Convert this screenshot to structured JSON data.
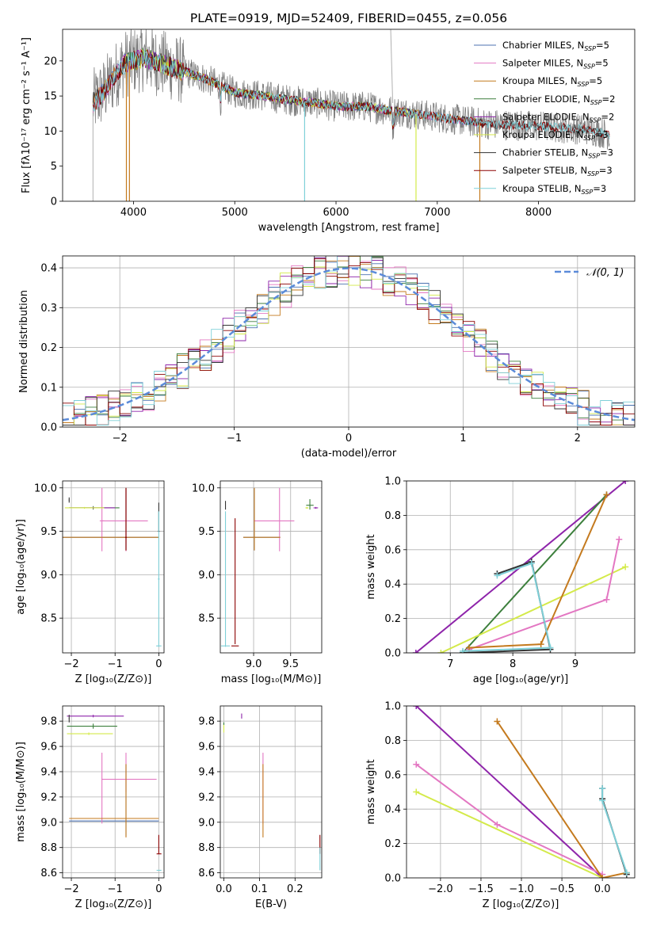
{
  "colors": {
    "Chabrier MILES": "#4c72b0",
    "Salpeter MILES": "#e377c2",
    "Kroupa MILES": "#c47a1e",
    "Chabrier ELODIE": "#3c7f3c",
    "Salpeter ELODIE": "#8e24aa",
    "Kroupa ELODIE": "#d4ea4a",
    "Chabrier STELIB": "#333333",
    "Salpeter STELIB": "#8b0000",
    "Kroupa STELIB": "#7fd0d8",
    "gray_spectrum": "#808080",
    "normal_curve": "#5b8bd9",
    "age_weight_line": "#7fd0d8",
    "z_weight_line": "#c47a1e"
  },
  "chart_data": [
    {
      "id": "spectrum",
      "type": "line",
      "title": "PLATE=0919, MJD=52409, FIBERID=0455, z=0.056",
      "xlabel": "wavelength [Angstrom, rest frame]",
      "ylabel": "Flux [fλ10⁻¹⁷ erg cm⁻² s⁻¹ A⁻¹]",
      "xlim": [
        3300,
        8950
      ],
      "ylim": [
        0,
        24.5
      ],
      "xticks": [
        4000,
        5000,
        6000,
        7000,
        8000
      ],
      "yticks": [
        0,
        5,
        10,
        15,
        20
      ],
      "grid": false,
      "legend_position": "top-right",
      "series": [
        {
          "name": "Chabrier MILES, N_SSP=5",
          "label_main": "Chabrier MILES, N",
          "label_sub": "SSP",
          "label_tail": "=5"
        },
        {
          "name": "Salpeter MILES, N_SSP=5",
          "label_main": "Salpeter MILES, N",
          "label_sub": "SSP",
          "label_tail": "=5"
        },
        {
          "name": "Kroupa MILES, N_SSP=5",
          "label_main": "Kroupa MILES, N",
          "label_sub": "SSP",
          "label_tail": "=5"
        },
        {
          "name": "Chabrier ELODIE, N_SSP=2",
          "label_main": "Chabrier ELODIE, N",
          "label_sub": "SSP",
          "label_tail": "=2"
        },
        {
          "name": "Salpeter ELODIE, N_SSP=2",
          "label_main": "Salpeter ELODIE, N",
          "label_sub": "SSP",
          "label_tail": "=2"
        },
        {
          "name": "Kroupa ELODIE, N_SSP=3",
          "label_main": "Kroupa ELODIE, N",
          "label_sub": "SSP",
          "label_tail": "=3"
        },
        {
          "name": "Chabrier STELIB, N_SSP=3",
          "label_main": "Chabrier STELIB, N",
          "label_sub": "SSP",
          "label_tail": "=3"
        },
        {
          "name": "Salpeter STELIB, N_SSP=3",
          "label_main": "Salpeter STELIB, N",
          "label_sub": "SSP",
          "label_tail": "=3"
        },
        {
          "name": "Kroupa STELIB, N_SSP=3",
          "label_main": "Kroupa STELIB, N",
          "label_sub": "SSP",
          "label_tail": "=3"
        }
      ],
      "continuum": [
        [
          3600,
          14
        ],
        [
          3700,
          15.5
        ],
        [
          3800,
          17.5
        ],
        [
          3900,
          19.5
        ],
        [
          4000,
          20
        ],
        [
          4100,
          20.5
        ],
        [
          4200,
          20
        ],
        [
          4300,
          19.5
        ],
        [
          4500,
          18.5
        ],
        [
          4700,
          17.5
        ],
        [
          5000,
          15.5
        ],
        [
          5300,
          15
        ],
        [
          5500,
          14.5
        ],
        [
          5800,
          14
        ],
        [
          6000,
          13.5
        ],
        [
          6300,
          13.5
        ],
        [
          6500,
          13
        ],
        [
          7000,
          12
        ],
        [
          7500,
          11
        ],
        [
          8000,
          10.7
        ],
        [
          8500,
          10.2
        ],
        [
          8700,
          9.5
        ]
      ]
    },
    {
      "id": "residuals",
      "type": "line",
      "xlabel": "(data-model)/error",
      "ylabel": "Normed distribution",
      "xlim": [
        -2.5,
        2.5
      ],
      "ylim": [
        0,
        0.43
      ],
      "xticks": [
        -2,
        -1,
        0,
        1,
        2
      ],
      "yticks": [
        0.0,
        0.1,
        0.2,
        0.3,
        0.4
      ],
      "grid": true,
      "legend_position": "top-right",
      "legend_label": "𝒩(0, 1)"
    },
    {
      "id": "age_vs_Z",
      "type": "scatter",
      "xlabel": "Z [log₁₀(Z/Z⊙)]",
      "ylabel": "age  [log₁₀(age/yr)]",
      "xlim": [
        -2.2,
        0.12
      ],
      "ylim": [
        8.1,
        10.08
      ],
      "xticks": [
        -2,
        -1,
        0
      ],
      "yticks": [
        8.5,
        9.0,
        9.5,
        10.0
      ],
      "grid": true,
      "points": [
        {
          "series": "Chabrier MILES",
          "x": -0.75,
          "y": 9.43,
          "xerr": [
            1.5,
            0.75
          ],
          "yerr": [
            0.15,
            0.57
          ]
        },
        {
          "series": "Salpeter MILES",
          "x": -0.75,
          "y": 9.62,
          "xerr": [
            0.55,
            0.5
          ],
          "yerr": [
            0.35,
            0.38
          ]
        },
        {
          "series": "Salpeter MILES",
          "x": -1.3,
          "y": 9.62,
          "xerr": [
            0.05,
            0.05
          ],
          "yerr": [
            0.35,
            0.38
          ]
        },
        {
          "series": "Kroupa MILES",
          "x": -0.75,
          "y": 9.43,
          "xerr": [
            1.5,
            0.75
          ],
          "yerr": [
            0.15,
            0.57
          ]
        },
        {
          "series": "Chabrier ELODIE",
          "x": -1.5,
          "y": 9.77,
          "xerr": [
            0.55,
            0.6
          ],
          "yerr": [
            0.02,
            0.02
          ]
        },
        {
          "series": "Salpeter ELODIE",
          "x": -1.5,
          "y": 9.77,
          "xerr": [
            0.55,
            0.5
          ],
          "yerr": [
            0.01,
            0.01
          ]
        },
        {
          "series": "Kroupa ELODIE",
          "x": -1.7,
          "y": 9.77,
          "xerr": [
            0.45,
            0.45
          ],
          "yerr": [
            0.01,
            0.01
          ]
        },
        {
          "series": "Chabrier STELIB",
          "x": 0.0,
          "y": 9.5,
          "xerr": [
            0.02,
            0.02
          ],
          "yerr": [
            0.0,
            0.33
          ]
        },
        {
          "series": "Chabrier STELIB",
          "x": -2.05,
          "y": 9.86,
          "xerr": [
            0.01,
            0.01
          ],
          "yerr": [
            0.03,
            0.03
          ]
        },
        {
          "series": "Salpeter STELIB",
          "x": -0.75,
          "y": 9.43,
          "xerr": [
            0.02,
            0.02
          ],
          "yerr": [
            0.15,
            0.57
          ]
        },
        {
          "series": "Kroupa STELIB",
          "x": 0.0,
          "y": 8.95,
          "xerr": [
            0.02,
            0.02
          ],
          "yerr": [
            0.78,
            0.78
          ]
        },
        {
          "series": "Kroupa STELIB",
          "x": 0.0,
          "y": 8.18,
          "xerr": [
            0.06,
            0.06
          ],
          "yerr": [
            0.0,
            0.0
          ]
        }
      ]
    },
    {
      "id": "age_vs_mass",
      "type": "scatter",
      "xlabel": "mass [log₁₀(M/M⊙)]",
      "xlim": [
        8.55,
        9.92
      ],
      "ylim": [
        8.1,
        10.08
      ],
      "xticks": [
        9.0,
        9.5
      ],
      "yticks": [
        8.5,
        9.0,
        9.5,
        10.0
      ],
      "grid": true,
      "points": [
        {
          "series": "Chabrier MILES",
          "x": 9.01,
          "y": 9.43,
          "xerr": [
            0.15,
            0.35
          ],
          "yerr": [
            0.15,
            0.57
          ]
        },
        {
          "series": "Salpeter MILES",
          "x": 9.35,
          "y": 9.62,
          "xerr": [
            0.35,
            0.2
          ],
          "yerr": [
            0.35,
            0.38
          ]
        },
        {
          "series": "Kroupa MILES",
          "x": 9.01,
          "y": 9.43,
          "xerr": [
            0.15,
            0.35
          ],
          "yerr": [
            0.15,
            0.57
          ]
        },
        {
          "series": "Chabrier ELODIE",
          "x": 9.76,
          "y": 9.8,
          "xerr": [
            0.05,
            0.05
          ],
          "yerr": [
            0.05,
            0.07
          ]
        },
        {
          "series": "Salpeter ELODIE",
          "x": 9.84,
          "y": 9.77,
          "xerr": [
            0.03,
            0.03
          ],
          "yerr": [
            0.01,
            0.01
          ]
        },
        {
          "series": "Kroupa ELODIE",
          "x": 9.72,
          "y": 9.77,
          "xerr": [
            0.02,
            0.02
          ],
          "yerr": [
            0.01,
            0.01
          ]
        },
        {
          "series": "Chabrier STELIB",
          "x": 8.62,
          "y": 9.75,
          "xerr": [
            0.0,
            0.0
          ],
          "yerr": [
            0.0,
            0.1
          ]
        },
        {
          "series": "Salpeter STELIB",
          "x": 8.75,
          "y": 8.7,
          "xerr": [
            0.0,
            0.0
          ],
          "yerr": [
            0.5,
            0.95
          ]
        },
        {
          "series": "Salpeter STELIB",
          "x": 8.75,
          "y": 8.18,
          "xerr": [
            0.05,
            0.05
          ],
          "yerr": [
            0.0,
            0.0
          ]
        },
        {
          "series": "Kroupa STELIB",
          "x": 8.62,
          "y": 8.95,
          "xerr": [
            0.0,
            0.0
          ],
          "yerr": [
            0.78,
            0.78
          ]
        },
        {
          "series": "Kroupa STELIB",
          "x": 8.62,
          "y": 8.18,
          "xerr": [
            0.06,
            0.06
          ],
          "yerr": [
            0.0,
            0.0
          ]
        }
      ]
    },
    {
      "id": "weight_vs_age",
      "type": "line",
      "xlabel": "age  [log₁₀(age/yr)]",
      "ylabel": "mass weight",
      "xlim": [
        6.3,
        9.95
      ],
      "ylim": [
        0,
        1.0
      ],
      "xticks": [
        7,
        8,
        9
      ],
      "yticks": [
        0.0,
        0.2,
        0.4,
        0.6,
        0.8,
        1.0
      ],
      "grid": true,
      "series": [
        {
          "name": "Salpeter ELODIE",
          "x": [
            6.45,
            9.8
          ],
          "y": [
            0.0,
            1.0
          ]
        },
        {
          "name": "Chabrier ELODIE",
          "x": [
            7.2,
            9.5
          ],
          "y": [
            0.0,
            0.92
          ]
        },
        {
          "name": "Kroupa ELODIE",
          "x": [
            6.85,
            9.8
          ],
          "y": [
            0.0,
            0.5
          ]
        },
        {
          "name": "Salpeter MILES",
          "x": [
            7.3,
            9.5,
            9.7
          ],
          "y": [
            0.02,
            0.31,
            0.66
          ]
        },
        {
          "name": "Kroupa MILES",
          "x": [
            7.3,
            8.45,
            9.5
          ],
          "y": [
            0.03,
            0.05,
            0.92
          ]
        },
        {
          "name": "Chabrier STELIB",
          "x": [
            7.75,
            8.3,
            8.6,
            7.2
          ],
          "y": [
            0.46,
            0.53,
            0.02,
            0.0
          ]
        },
        {
          "name": "Kroupa STELIB",
          "x": [
            7.75,
            8.3,
            8.6,
            7.2
          ],
          "y": [
            0.45,
            0.52,
            0.03,
            0.01
          ]
        }
      ]
    },
    {
      "id": "mass_vs_Z",
      "type": "scatter",
      "xlabel": "Z [log₁₀(Z/Z⊙)]",
      "ylabel": "mass [log₁₀(M/M⊙)]",
      "xlim": [
        -2.2,
        0.12
      ],
      "ylim": [
        8.56,
        9.92
      ],
      "xticks": [
        -2,
        -1,
        0
      ],
      "yticks": [
        8.6,
        8.8,
        9.0,
        9.2,
        9.4,
        9.6,
        9.8
      ],
      "grid": true,
      "points": [
        {
          "series": "Chabrier MILES",
          "x": -0.75,
          "y": 9.01,
          "xerr": [
            1.3,
            0.75
          ],
          "yerr": [
            0.12,
            0.45
          ]
        },
        {
          "series": "Salpeter MILES",
          "x": -0.75,
          "y": 9.34,
          "xerr": [
            0.55,
            0.7
          ],
          "yerr": [
            0.1,
            0.21
          ]
        },
        {
          "series": "Salpeter MILES",
          "x": -1.3,
          "y": 9.34,
          "xerr": [
            0.01,
            0.01
          ],
          "yerr": [
            0.35,
            0.21
          ]
        },
        {
          "series": "Kroupa MILES",
          "x": -0.75,
          "y": 9.03,
          "xerr": [
            1.3,
            0.75
          ],
          "yerr": [
            0.15,
            0.43
          ]
        },
        {
          "series": "Chabrier ELODIE",
          "x": -1.5,
          "y": 9.76,
          "xerr": [
            0.6,
            0.55
          ],
          "yerr": [
            0.02,
            0.02
          ]
        },
        {
          "series": "Salpeter ELODIE",
          "x": -1.5,
          "y": 9.84,
          "xerr": [
            0.6,
            0.7
          ],
          "yerr": [
            0.01,
            0.01
          ]
        },
        {
          "series": "Kroupa ELODIE",
          "x": -1.6,
          "y": 9.7,
          "xerr": [
            0.5,
            0.55
          ],
          "yerr": [
            0.01,
            0.01
          ]
        },
        {
          "series": "Chabrier STELIB",
          "x": -2.05,
          "y": 9.82,
          "xerr": [
            0.01,
            0.01
          ],
          "yerr": [
            0.03,
            0.03
          ]
        },
        {
          "series": "Salpeter STELIB",
          "x": 0.0,
          "y": 8.75,
          "xerr": [
            0.05,
            0.06
          ],
          "yerr": [
            0.0,
            0.15
          ]
        },
        {
          "series": "Kroupa STELIB",
          "x": 0.0,
          "y": 8.62,
          "xerr": [
            0.05,
            0.06
          ],
          "yerr": [
            0.0,
            0.0
          ]
        }
      ]
    },
    {
      "id": "mass_vs_ebv",
      "type": "scatter",
      "xlabel": "E(B-V)",
      "xlim": [
        -0.01,
        0.275
      ],
      "ylim": [
        8.56,
        9.92
      ],
      "xticks": [
        0.0,
        0.1,
        0.2
      ],
      "yticks": [
        8.6,
        8.8,
        9.0,
        9.2,
        9.4,
        9.6,
        9.8
      ],
      "grid": true,
      "points": [
        {
          "series": "Salpeter MILES",
          "x": 0.11,
          "y": 9.34,
          "xerr": [
            0.0,
            0.0
          ],
          "yerr": [
            0.35,
            0.21
          ]
        },
        {
          "series": "Kroupa MILES",
          "x": 0.11,
          "y": 9.03,
          "xerr": [
            0.0,
            0.0
          ],
          "yerr": [
            0.15,
            0.43
          ]
        },
        {
          "series": "Salpeter ELODIE",
          "x": 0.05,
          "y": 9.84,
          "xerr": [
            0.0,
            0.0
          ],
          "yerr": [
            0.02,
            0.02
          ]
        },
        {
          "series": "Kroupa ELODIE",
          "x": 0.0,
          "y": 9.74,
          "xerr": [
            0.0,
            0.0
          ],
          "yerr": [
            0.03,
            0.03
          ]
        },
        {
          "series": "Chabrier ELODIE",
          "x": 0.0,
          "y": 9.78,
          "xerr": [
            0.0,
            0.0
          ],
          "yerr": [
            0.01,
            0.01
          ]
        },
        {
          "series": "Salpeter STELIB",
          "x": 0.27,
          "y": 8.75,
          "xerr": [
            0.0,
            0.0
          ],
          "yerr": [
            0.0,
            0.15
          ]
        },
        {
          "series": "Kroupa STELIB",
          "x": 0.27,
          "y": 8.62,
          "xerr": [
            0.0,
            0.0
          ],
          "yerr": [
            0.0,
            0.18
          ]
        }
      ]
    },
    {
      "id": "weight_vs_Z",
      "type": "line",
      "xlabel": "Z [log₁₀(Z/Z⊙)]",
      "ylabel": "mass weight",
      "xlim": [
        -2.42,
        0.4
      ],
      "ylim": [
        0,
        1.0
      ],
      "xticks": [
        -2.0,
        -1.5,
        -1.0,
        -0.5,
        0.0
      ],
      "yticks": [
        0.0,
        0.2,
        0.4,
        0.6,
        0.8,
        1.0
      ],
      "grid": true,
      "series": [
        {
          "name": "Salpeter ELODIE",
          "x": [
            -2.3,
            0.0
          ],
          "y": [
            1.0,
            0.0
          ]
        },
        {
          "name": "Salpeter MILES",
          "x": [
            -2.3,
            -1.3,
            0.0
          ],
          "y": [
            0.66,
            0.31,
            0.02
          ]
        },
        {
          "name": "Kroupa ELODIE",
          "x": [
            -2.3,
            0.0
          ],
          "y": [
            0.5,
            0.0
          ]
        },
        {
          "name": "Kroupa MILES",
          "x": [
            -1.3,
            0.0,
            0.3
          ],
          "y": [
            0.91,
            0.0,
            0.03
          ]
        },
        {
          "name": "Chabrier STELIB",
          "x": [
            0.0,
            0.0,
            0.3
          ],
          "y": [
            0.52,
            0.46,
            0.02
          ]
        },
        {
          "name": "Kroupa STELIB",
          "x": [
            0.0,
            0.0,
            0.3
          ],
          "y": [
            0.52,
            0.45,
            0.03
          ]
        }
      ]
    }
  ]
}
